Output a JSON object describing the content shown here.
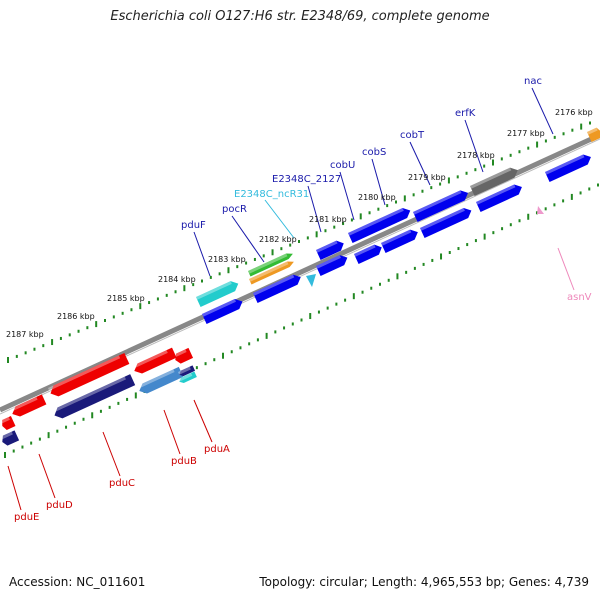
{
  "title": "Escherichia coli O127:H6 str. E2348/69, complete genome",
  "accession": "Accession: NC_011601",
  "stats": "Topology: circular; Length: 4,965,553 bp; Genes: 4,739",
  "colors": {
    "cds_blue": "#0000ee",
    "dark_navy": "#1a1a7a",
    "red": "#ee0000",
    "cyan": "#22cccc",
    "green": "#33bb33",
    "orange": "#ee9922",
    "gray": "#666666",
    "pink": "#ee99cc",
    "tick_green": "#228822",
    "light_blue": "#4488cc",
    "label_blue": "#1a1aaa",
    "label_red": "#cc0000",
    "label_cyan": "#33bbdd",
    "label_pink": "#ee88bb"
  },
  "ticks": [
    {
      "label": "2176 kbp"
    },
    {
      "label": "2177 kbp"
    },
    {
      "label": "2178 kbp"
    },
    {
      "label": "2179 kbp"
    },
    {
      "label": "2180 kbp"
    },
    {
      "label": "2181 kbp"
    },
    {
      "label": "2182 kbp"
    },
    {
      "label": "2183 kbp"
    },
    {
      "label": "2184 kbp"
    },
    {
      "label": "2185 kbp"
    },
    {
      "label": "2186 kbp"
    },
    {
      "label": "2187 kbp"
    }
  ],
  "genes_top": [
    {
      "name": "nac"
    },
    {
      "name": "erfK"
    },
    {
      "name": "cobT"
    },
    {
      "name": "cobS"
    },
    {
      "name": "cobU"
    },
    {
      "name": "E2348C_2127"
    },
    {
      "name": "E2348C_ncR31"
    },
    {
      "name": "pocR"
    },
    {
      "name": "pduF"
    }
  ],
  "genes_bottom": [
    {
      "name": "asnV"
    },
    {
      "name": "pduA"
    },
    {
      "name": "pduB"
    },
    {
      "name": "pduC"
    },
    {
      "name": "pduD"
    },
    {
      "name": "pduE"
    }
  ]
}
